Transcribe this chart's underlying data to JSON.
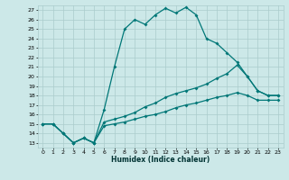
{
  "xlabel": "Humidex (Indice chaleur)",
  "bg_color": "#cce8e8",
  "grid_color": "#aacccc",
  "line_color": "#007777",
  "xlim": [
    -0.5,
    23.5
  ],
  "ylim": [
    12.5,
    27.5
  ],
  "yticks": [
    13,
    14,
    15,
    16,
    17,
    18,
    19,
    20,
    21,
    22,
    23,
    24,
    25,
    26,
    27
  ],
  "xticks": [
    0,
    1,
    2,
    3,
    4,
    5,
    6,
    7,
    8,
    9,
    10,
    11,
    12,
    13,
    14,
    15,
    16,
    17,
    18,
    19,
    20,
    21,
    22,
    23
  ],
  "line1_x": [
    0,
    1,
    2,
    3,
    4,
    5,
    6,
    7,
    8,
    9,
    10,
    11,
    12,
    13,
    14,
    15,
    16,
    17,
    18,
    19,
    20,
    21,
    22,
    23
  ],
  "line1_y": [
    15.0,
    15.0,
    14.0,
    13.0,
    13.5,
    13.0,
    16.5,
    21.0,
    25.0,
    26.0,
    25.5,
    26.5,
    27.2,
    26.7,
    27.3,
    26.5,
    24.0,
    23.5,
    22.5,
    21.5,
    20.0,
    18.5,
    18.0,
    18.0
  ],
  "line2_x": [
    0,
    1,
    2,
    3,
    4,
    5,
    6,
    7,
    8,
    9,
    10,
    11,
    12,
    13,
    14,
    15,
    16,
    17,
    18,
    19,
    20,
    21,
    22,
    23
  ],
  "line2_y": [
    15.0,
    15.0,
    14.0,
    13.0,
    13.5,
    13.0,
    15.2,
    15.5,
    15.8,
    16.2,
    16.8,
    17.2,
    17.8,
    18.2,
    18.5,
    18.8,
    19.2,
    19.8,
    20.3,
    21.2,
    20.0,
    18.5,
    18.0,
    18.0
  ],
  "line3_x": [
    0,
    1,
    2,
    3,
    4,
    5,
    6,
    7,
    8,
    9,
    10,
    11,
    12,
    13,
    14,
    15,
    16,
    17,
    18,
    19,
    20,
    21,
    22,
    23
  ],
  "line3_y": [
    15.0,
    15.0,
    14.0,
    13.0,
    13.5,
    13.0,
    14.8,
    15.0,
    15.2,
    15.5,
    15.8,
    16.0,
    16.3,
    16.7,
    17.0,
    17.2,
    17.5,
    17.8,
    18.0,
    18.3,
    18.0,
    17.5,
    17.5,
    17.5
  ]
}
